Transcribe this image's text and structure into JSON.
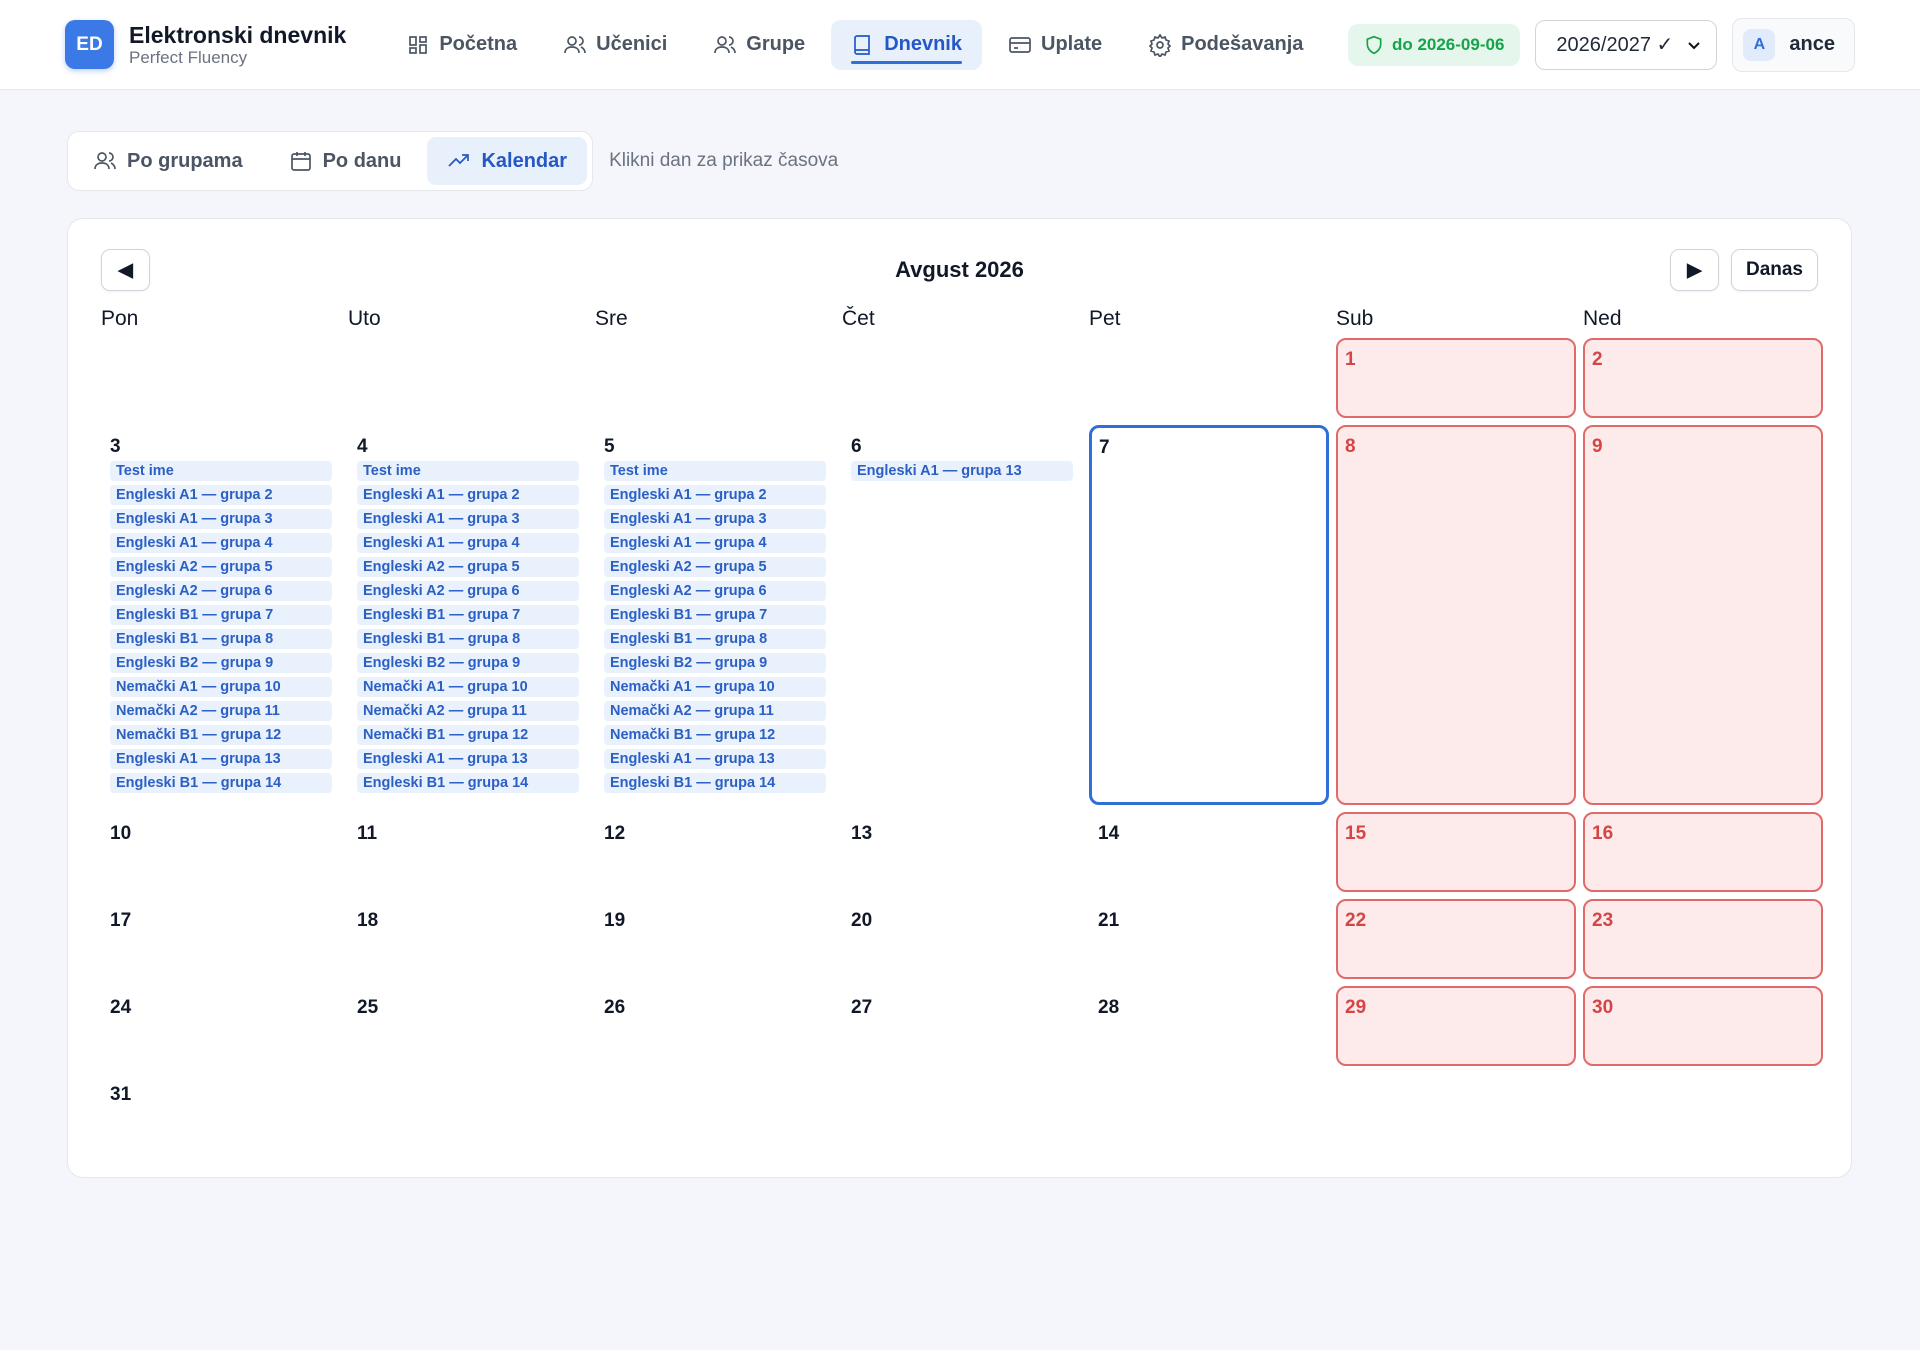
{
  "header": {
    "logo": "ED",
    "title": "Elektronski dnevnik",
    "subtitle": "Perfect Fluency",
    "nav": [
      {
        "label": "Početna"
      },
      {
        "label": "Učenici"
      },
      {
        "label": "Grupe"
      },
      {
        "label": "Dnevnik",
        "active": true
      },
      {
        "label": "Uplate"
      },
      {
        "label": "Podešavanja"
      }
    ],
    "license": "do 2026-09-06",
    "school_year": "2026/2027 ✓",
    "user": {
      "avatar": "A",
      "name": "ance"
    }
  },
  "tabs": {
    "items": [
      {
        "label": "Po grupama"
      },
      {
        "label": "Po danu"
      },
      {
        "label": "Kalendar",
        "active": true
      }
    ],
    "hint": "Klikni dan za prikaz časova"
  },
  "calendar": {
    "month": "Avgust 2026",
    "prev": "◀",
    "next": "▶",
    "today_button": "Danas",
    "weekdays": [
      "Pon",
      "Uto",
      "Sre",
      "Čet",
      "Pet",
      "Sub",
      "Ned"
    ],
    "weeks": [
      [
        null,
        null,
        null,
        null,
        null,
        {
          "day": 1
        },
        {
          "day": 2
        }
      ],
      [
        {
          "day": 3,
          "events": [
            "Test ime",
            "Engleski A1 — grupa 2",
            "Engleski A1 — grupa 3",
            "Engleski A1 — grupa 4",
            "Engleski A2 — grupa 5",
            "Engleski A2 — grupa 6",
            "Engleski B1 — grupa 7",
            "Engleski B1 — grupa 8",
            "Engleski B2 — grupa 9",
            "Nemački A1 — grupa 10",
            "Nemački A2 — grupa 11",
            "Nemački B1 — grupa 12",
            "Engleski A1 — grupa 13",
            "Engleski B1 — grupa 14"
          ]
        },
        {
          "day": 4,
          "events": [
            "Test ime",
            "Engleski A1 — grupa 2",
            "Engleski A1 — grupa 3",
            "Engleski A1 — grupa 4",
            "Engleski A2 — grupa 5",
            "Engleski A2 — grupa 6",
            "Engleski B1 — grupa 7",
            "Engleski B1 — grupa 8",
            "Engleski B2 — grupa 9",
            "Nemački A1 — grupa 10",
            "Nemački A2 — grupa 11",
            "Nemački B1 — grupa 12",
            "Engleski A1 — grupa 13",
            "Engleski B1 — grupa 14"
          ]
        },
        {
          "day": 5,
          "events": [
            "Test ime",
            "Engleski A1 — grupa 2",
            "Engleski A1 — grupa 3",
            "Engleski A1 — grupa 4",
            "Engleski A2 — grupa 5",
            "Engleski A2 — grupa 6",
            "Engleski B1 — grupa 7",
            "Engleski B1 — grupa 8",
            "Engleski B2 — grupa 9",
            "Nemački A1 — grupa 10",
            "Nemački A2 — grupa 11",
            "Nemački B1 — grupa 12",
            "Engleski A1 — grupa 13",
            "Engleski B1 — grupa 14"
          ]
        },
        {
          "day": 6,
          "events": [
            "Engleski A1 — grupa 13"
          ]
        },
        {
          "day": 7,
          "today": true
        },
        {
          "day": 8
        },
        {
          "day": 9
        }
      ],
      [
        {
          "day": 10
        },
        {
          "day": 11
        },
        {
          "day": 12
        },
        {
          "day": 13
        },
        {
          "day": 14
        },
        {
          "day": 15
        },
        {
          "day": 16
        }
      ],
      [
        {
          "day": 17
        },
        {
          "day": 18
        },
        {
          "day": 19
        },
        {
          "day": 20
        },
        {
          "day": 21
        },
        {
          "day": 22
        },
        {
          "day": 23
        }
      ],
      [
        {
          "day": 24
        },
        {
          "day": 25
        },
        {
          "day": 26
        },
        {
          "day": 27
        },
        {
          "day": 28
        },
        {
          "day": 29
        },
        {
          "day": 30
        }
      ],
      [
        {
          "day": 31
        },
        null,
        null,
        null,
        null,
        null,
        null
      ]
    ]
  }
}
